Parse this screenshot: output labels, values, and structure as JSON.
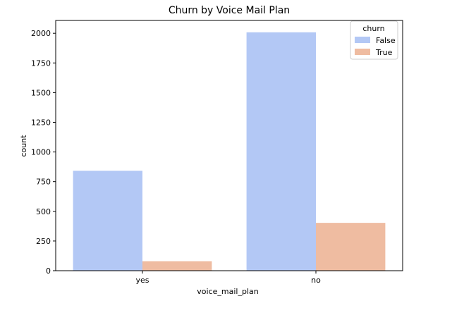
{
  "chart_data": {
    "type": "bar",
    "title": "Churn by Voice Mail Plan",
    "xlabel": "voice_mail_plan",
    "ylabel": "count",
    "categories": [
      "yes",
      "no"
    ],
    "series": [
      {
        "name": "False",
        "values": [
          842,
          2008
        ],
        "color": "#b3c8f5"
      },
      {
        "name": "True",
        "values": [
          80,
          403
        ],
        "color": "#efbca1"
      }
    ],
    "ylim": [
      0,
      2108
    ],
    "yticks": [
      0,
      250,
      500,
      750,
      1000,
      1250,
      1500,
      1750,
      2000
    ],
    "legend": {
      "title": "churn",
      "placement": "top-right"
    },
    "grid": false
  }
}
